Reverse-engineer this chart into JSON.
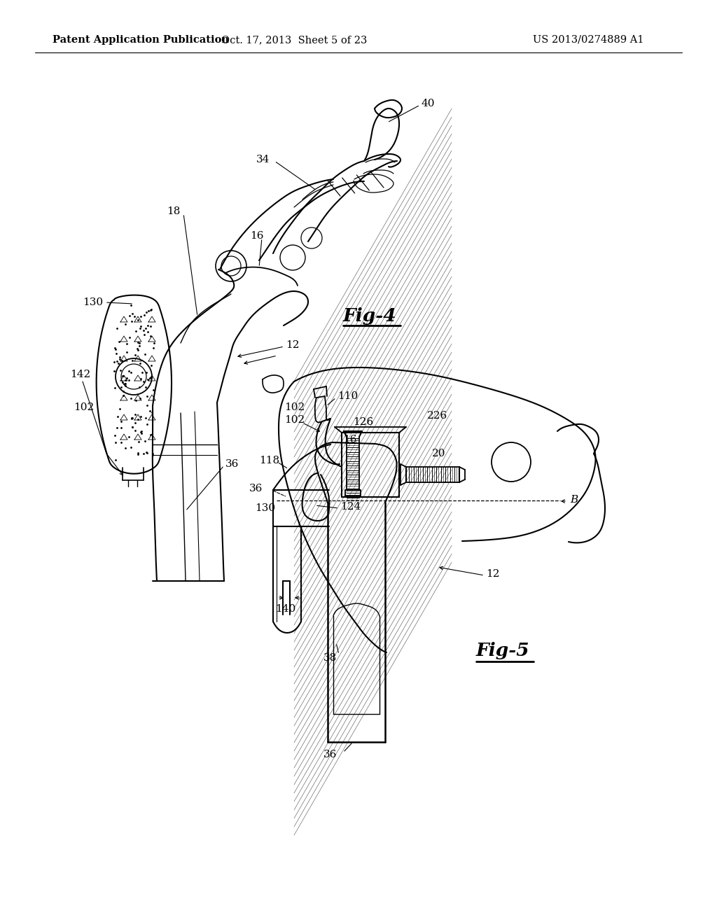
{
  "background_color": "#ffffff",
  "header_left": "Patent Application Publication",
  "header_center": "Oct. 17, 2013  Sheet 5 of 23",
  "header_right": "US 2013/0274889 A1",
  "fig4_label": "Fig-4",
  "fig5_label": "Fig-5",
  "header_fontsize": 11,
  "ref_fontsize": 11
}
